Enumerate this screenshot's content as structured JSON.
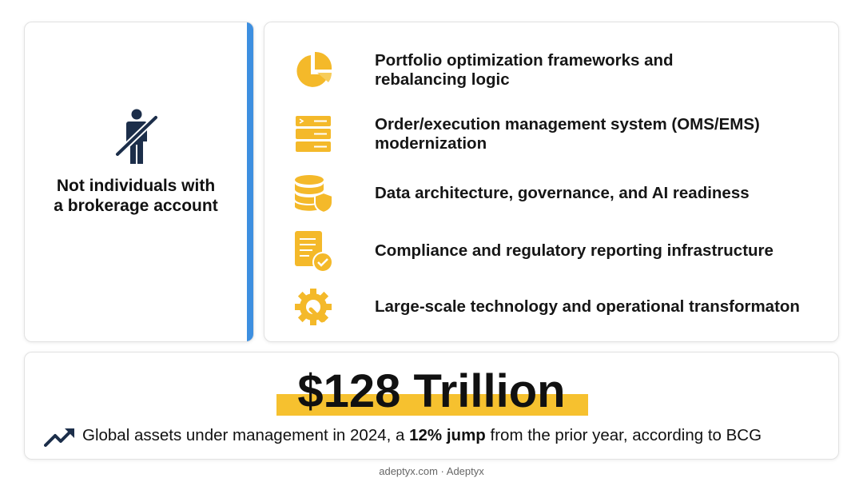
{
  "left_card": {
    "lines": [
      "Not individuals with",
      "a brokerage account"
    ]
  },
  "items": [
    {
      "lines": [
        "Portfolio optimization frameworks and",
        "rebalancing logic"
      ]
    },
    {
      "lines": [
        "Order/execution management system (OMS/EMS)",
        "modernization"
      ]
    },
    {
      "lines": [
        "Data architecture, governance, and AI readiness"
      ]
    },
    {
      "lines": [
        "Compliance and regulatory reporting infrastructure"
      ]
    },
    {
      "lines": [
        "Large-scale technology and operational transformaton"
      ]
    }
  ],
  "stat": {
    "headline": "$128 Trillion",
    "caption_before": "Global assets under management in 2024, a ",
    "caption_emphasis": "12% jump",
    "caption_after": " from the prior year, according to BCG"
  },
  "footer": "adeptyx.com · Adeptyx"
}
